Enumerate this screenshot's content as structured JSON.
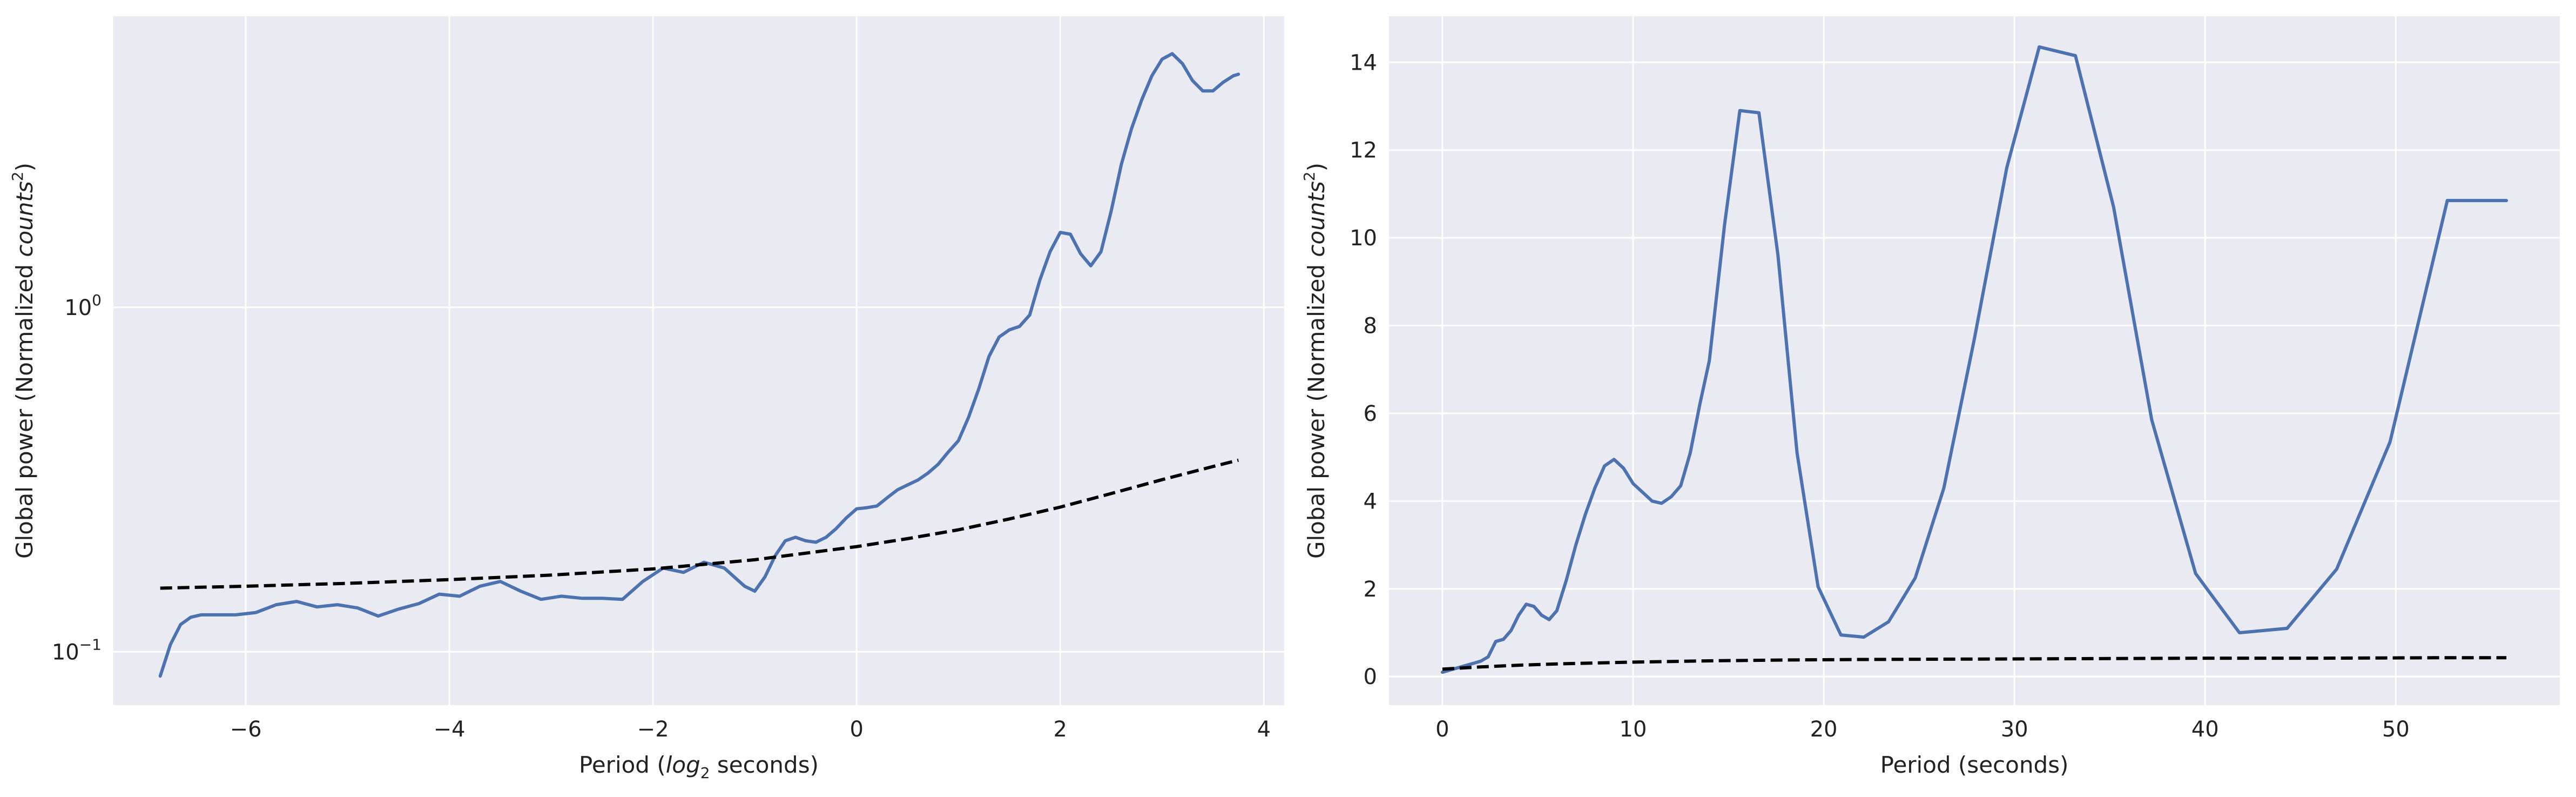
{
  "chart_data": [
    {
      "type": "line",
      "xlabel_prefix": "Period (",
      "xlabel_math": "log",
      "xlabel_sub": "2",
      "xlabel_suffix": " seconds)",
      "ylabel_prefix": "Global power (Normalized ",
      "ylabel_math": "counts",
      "ylabel_sup": "2",
      "ylabel_suffix": ")",
      "yscale": "log",
      "xlim": [
        -7.3,
        4.2
      ],
      "ylim": [
        0.07,
        7.0
      ],
      "xticks": [
        {
          "value": -6,
          "label": "−6"
        },
        {
          "value": -4,
          "label": "−4"
        },
        {
          "value": -2,
          "label": "−2"
        },
        {
          "value": 0,
          "label": "0"
        },
        {
          "value": 2,
          "label": "2"
        },
        {
          "value": 4,
          "label": "4"
        }
      ],
      "yticks": [
        {
          "value": 0.1,
          "base": "10",
          "exp": "−1"
        },
        {
          "value": 1,
          "base": "10",
          "exp": "0"
        }
      ],
      "grid": true,
      "series": [
        {
          "role": "global-power",
          "color": "#4c72b0",
          "dashed": false,
          "x": [
            -6.84,
            -6.74,
            -6.64,
            -6.54,
            -6.44,
            -6.3,
            -6.1,
            -5.9,
            -5.7,
            -5.5,
            -5.3,
            -5.1,
            -4.9,
            -4.7,
            -4.5,
            -4.3,
            -4.1,
            -3.9,
            -3.7,
            -3.5,
            -3.3,
            -3.1,
            -2.9,
            -2.7,
            -2.5,
            -2.3,
            -2.1,
            -1.9,
            -1.7,
            -1.5,
            -1.3,
            -1.1,
            -1.0,
            -0.9,
            -0.8,
            -0.7,
            -0.6,
            -0.5,
            -0.4,
            -0.3,
            -0.2,
            -0.1,
            0.0,
            0.1,
            0.2,
            0.3,
            0.4,
            0.5,
            0.6,
            0.7,
            0.8,
            0.9,
            1.0,
            1.1,
            1.2,
            1.3,
            1.4,
            1.5,
            1.6,
            1.7,
            1.8,
            1.9,
            2.0,
            2.1,
            2.2,
            2.3,
            2.4,
            2.5,
            2.6,
            2.7,
            2.8,
            2.9,
            3.0,
            3.1,
            3.2,
            3.3,
            3.4,
            3.5,
            3.6,
            3.7,
            3.75
          ],
          "y": [
            0.085,
            0.105,
            0.12,
            0.126,
            0.128,
            0.128,
            0.128,
            0.13,
            0.137,
            0.14,
            0.135,
            0.137,
            0.134,
            0.127,
            0.133,
            0.138,
            0.147,
            0.145,
            0.155,
            0.16,
            0.15,
            0.142,
            0.145,
            0.143,
            0.143,
            0.142,
            0.16,
            0.175,
            0.17,
            0.182,
            0.175,
            0.155,
            0.15,
            0.165,
            0.19,
            0.21,
            0.215,
            0.21,
            0.208,
            0.215,
            0.228,
            0.245,
            0.26,
            0.262,
            0.265,
            0.28,
            0.295,
            0.305,
            0.315,
            0.33,
            0.35,
            0.38,
            0.41,
            0.48,
            0.58,
            0.72,
            0.82,
            0.86,
            0.88,
            0.95,
            1.2,
            1.45,
            1.65,
            1.63,
            1.43,
            1.32,
            1.45,
            1.9,
            2.6,
            3.3,
            4.0,
            4.7,
            5.25,
            5.45,
            5.1,
            4.55,
            4.25,
            4.25,
            4.5,
            4.7,
            4.75
          ]
        },
        {
          "role": "significance",
          "color": "#000000",
          "dashed": true,
          "x": [
            -6.84,
            -6.0,
            -5.0,
            -4.0,
            -3.0,
            -2.0,
            -1.0,
            0.0,
            0.5,
            1.0,
            1.5,
            2.0,
            2.5,
            3.0,
            3.5,
            3.75
          ],
          "y": [
            0.153,
            0.155,
            0.158,
            0.162,
            0.167,
            0.174,
            0.185,
            0.202,
            0.213,
            0.226,
            0.243,
            0.263,
            0.288,
            0.316,
            0.345,
            0.36
          ]
        }
      ]
    },
    {
      "type": "line",
      "xlabel": "Period (seconds)",
      "ylabel_prefix": "Global power (Normalized ",
      "ylabel_math": "counts",
      "ylabel_sup": "2",
      "ylabel_suffix": ")",
      "yscale": "linear",
      "xlim": [
        -2.8,
        58.6
      ],
      "ylim": [
        -0.65,
        15.05
      ],
      "xticks": [
        {
          "value": 0,
          "label": "0"
        },
        {
          "value": 10,
          "label": "10"
        },
        {
          "value": 20,
          "label": "20"
        },
        {
          "value": 30,
          "label": "30"
        },
        {
          "value": 40,
          "label": "40"
        },
        {
          "value": 50,
          "label": "50"
        }
      ],
      "yticks": [
        {
          "value": 0,
          "label": "0"
        },
        {
          "value": 2,
          "label": "2"
        },
        {
          "value": 4,
          "label": "4"
        },
        {
          "value": 6,
          "label": "6"
        },
        {
          "value": 8,
          "label": "8"
        },
        {
          "value": 10,
          "label": "10"
        },
        {
          "value": 12,
          "label": "12"
        },
        {
          "value": 14,
          "label": "14"
        }
      ],
      "grid": true,
      "series": [
        {
          "role": "global-power",
          "color": "#4c72b0",
          "dashed": false,
          "x": [
            0.0,
            0.4,
            0.8,
            1.2,
            1.6,
            2.0,
            2.4,
            2.8,
            3.2,
            3.6,
            4.0,
            4.4,
            4.8,
            5.2,
            5.6,
            6.0,
            6.5,
            7.0,
            7.5,
            8.0,
            8.5,
            9.0,
            9.5,
            10.0,
            10.5,
            11.0,
            11.5,
            12.0,
            12.5,
            13.0,
            13.5,
            14.0,
            14.8,
            15.6,
            16.6,
            17.6,
            18.6,
            19.7,
            20.9,
            22.1,
            23.4,
            24.8,
            26.3,
            27.9,
            29.6,
            31.3,
            33.2,
            35.2,
            37.2,
            39.5,
            41.8,
            44.3,
            46.9,
            49.7,
            52.7,
            55.8
          ],
          "y": [
            0.1,
            0.15,
            0.2,
            0.25,
            0.3,
            0.35,
            0.45,
            0.8,
            0.85,
            1.05,
            1.4,
            1.65,
            1.6,
            1.4,
            1.3,
            1.5,
            2.2,
            3.0,
            3.7,
            4.3,
            4.8,
            4.95,
            4.75,
            4.4,
            4.2,
            4.0,
            3.95,
            4.1,
            4.35,
            5.1,
            6.2,
            7.2,
            10.3,
            12.9,
            12.85,
            9.6,
            5.1,
            2.05,
            0.95,
            0.9,
            1.25,
            2.25,
            4.3,
            7.7,
            11.6,
            14.35,
            14.15,
            10.7,
            5.85,
            2.35,
            1.0,
            1.1,
            2.45,
            5.35,
            10.85,
            10.85
          ]
        },
        {
          "role": "significance",
          "color": "#000000",
          "dashed": true,
          "x": [
            0.0,
            2.0,
            4.0,
            6.0,
            8.0,
            10.0,
            14.0,
            18.0,
            22.0,
            28.0,
            34.0,
            40.0,
            46.0,
            52.0,
            55.8
          ],
          "y": [
            0.17,
            0.22,
            0.26,
            0.29,
            0.31,
            0.33,
            0.36,
            0.38,
            0.39,
            0.4,
            0.41,
            0.42,
            0.42,
            0.43,
            0.43
          ]
        }
      ]
    }
  ]
}
